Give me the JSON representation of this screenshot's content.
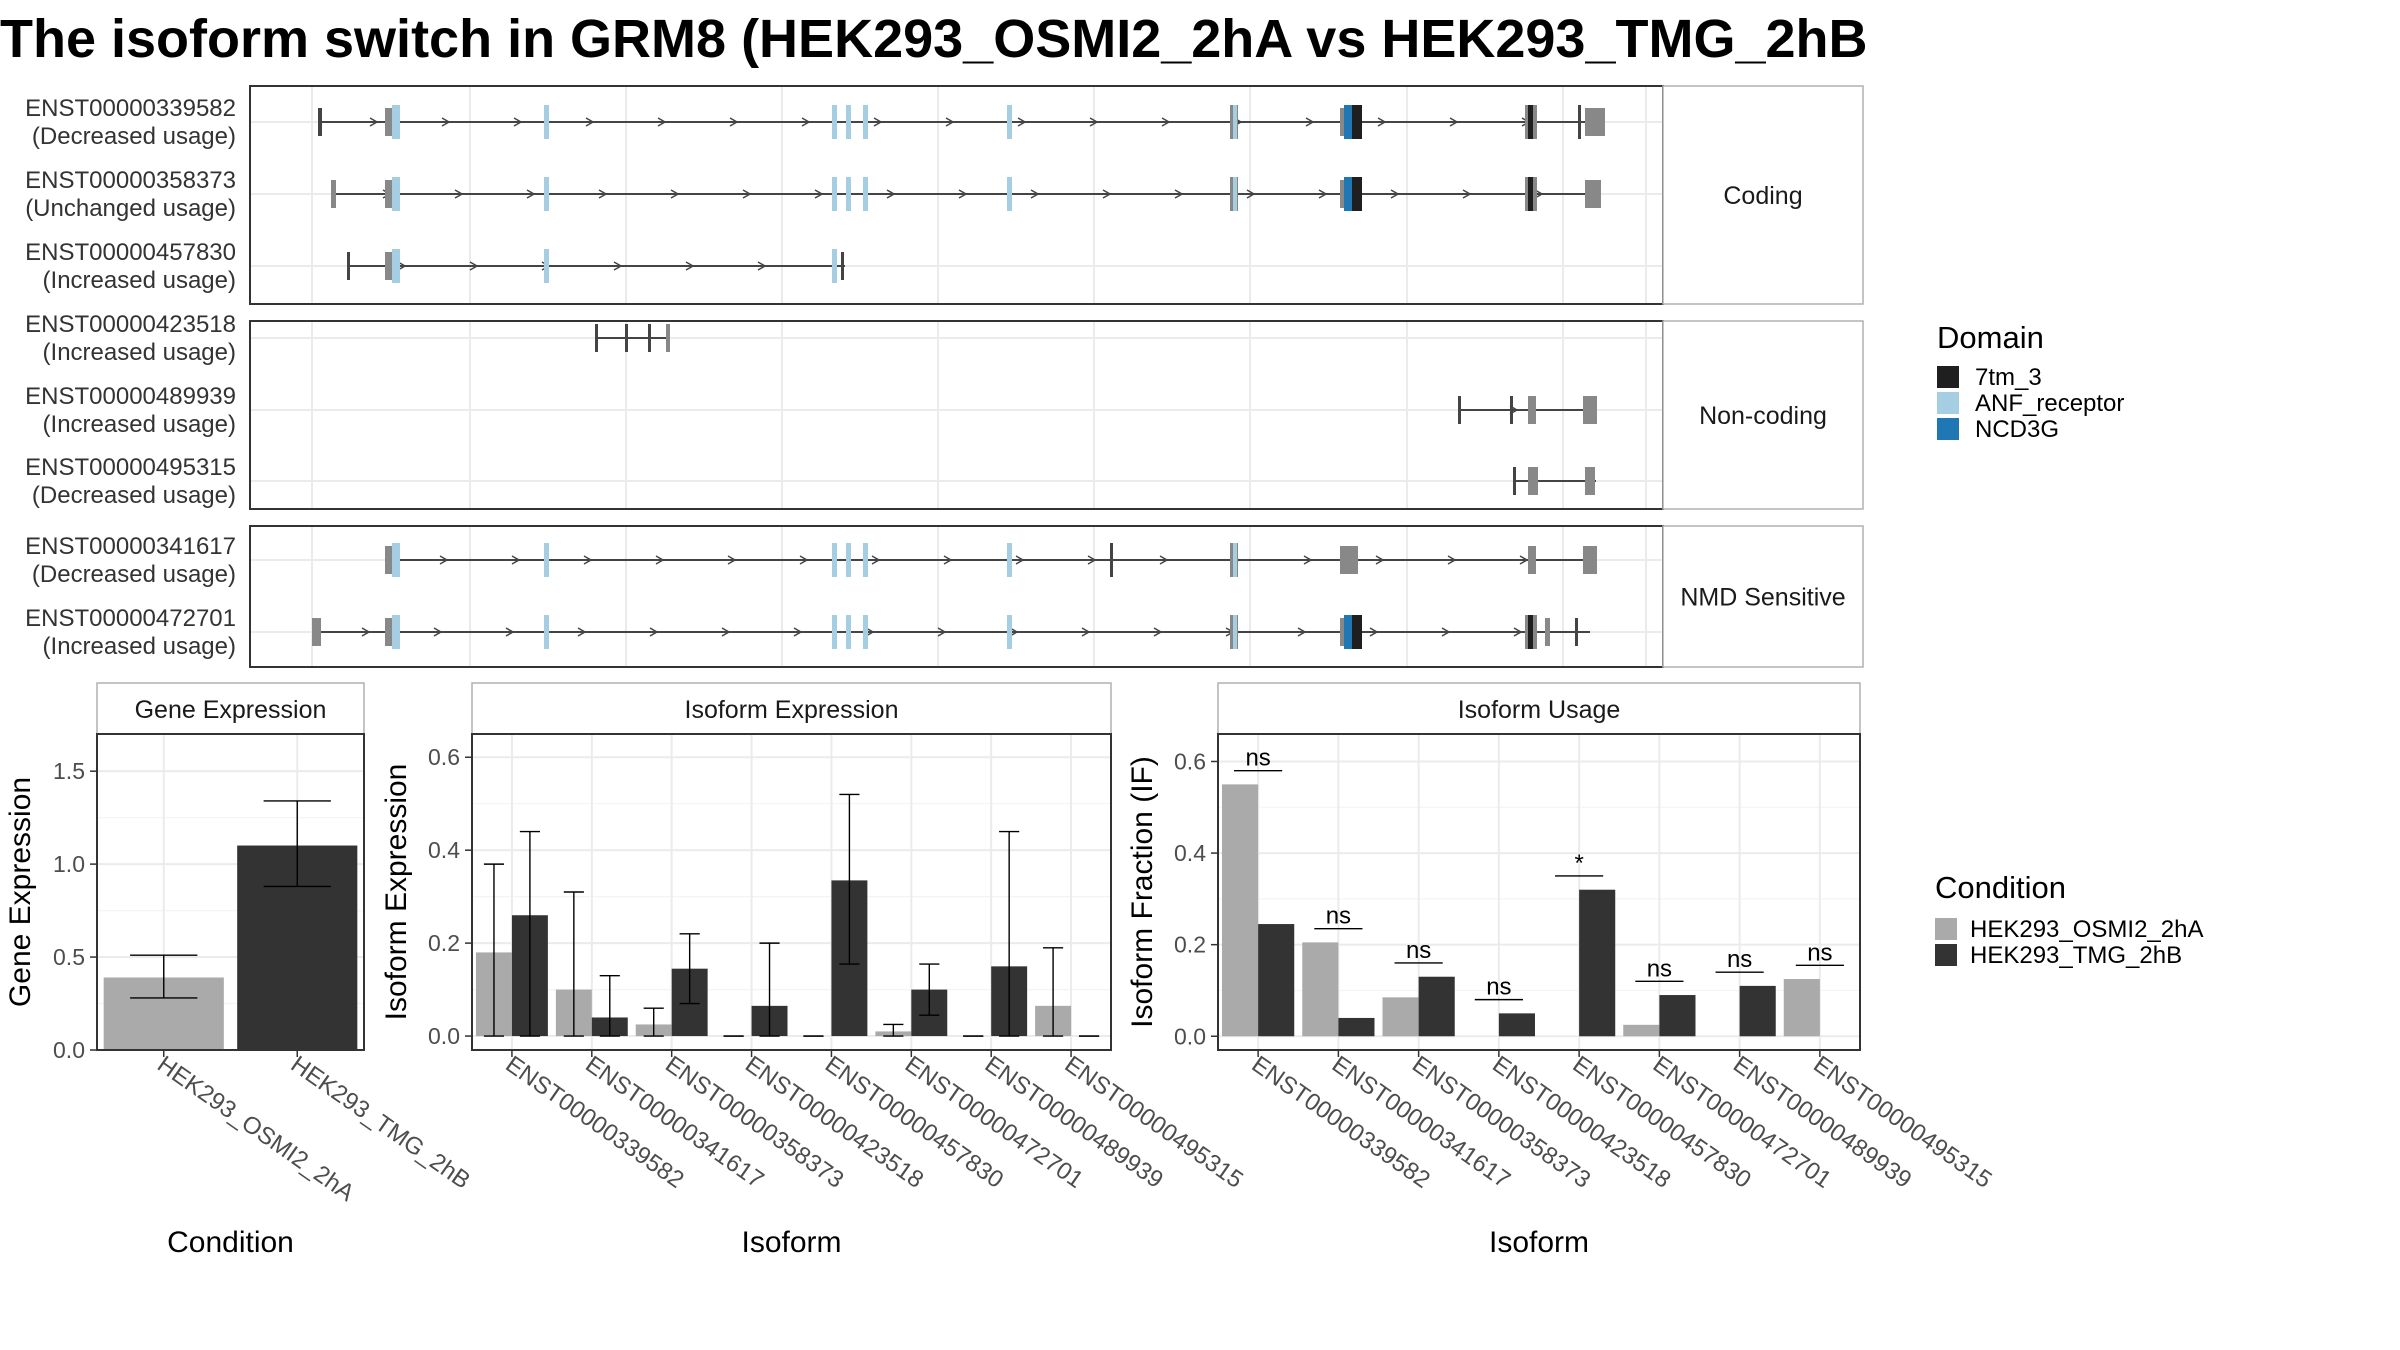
{
  "title": "The isoform switch in GRM8 (HEK293_OSMI2_2hA vs HEK293_TMG_2hB",
  "colors": {
    "7tm_3": "#1f1f1f",
    "ANF_receptor": "#a6cee3",
    "NCD3G": "#1f78b4",
    "HEK293_OSMI2_2hA": "#aaaaaa",
    "HEK293_TMG_2hB": "#333333",
    "intron": "#444444",
    "exon": "#888888"
  },
  "chart_data": [
    {
      "type": "gene-structure",
      "panels": [
        {
          "label": "Coding",
          "isoforms": [
            {
              "id": "ENST00000339582",
              "usage": "(Decreased usage)",
              "coding": true
            },
            {
              "id": "ENST00000358373",
              "usage": "(Unchanged usage)",
              "coding": true
            },
            {
              "id": "ENST00000457830",
              "usage": "(Increased usage)",
              "coding": true
            }
          ]
        },
        {
          "label": "Non-coding",
          "isoforms": [
            {
              "id": "ENST00000423518",
              "usage": "(Increased usage)",
              "coding": false
            },
            {
              "id": "ENST00000489939",
              "usage": "(Increased usage)",
              "coding": false
            },
            {
              "id": "ENST00000495315",
              "usage": "(Decreased usage)",
              "coding": false
            }
          ]
        },
        {
          "label": "NMD Sensitive",
          "isoforms": [
            {
              "id": "ENST00000341617",
              "usage": "(Decreased usage)",
              "coding": true
            },
            {
              "id": "ENST00000472701",
              "usage": "(Increased usage)",
              "coding": true
            }
          ]
        }
      ],
      "legend": {
        "title": "Domain",
        "entries": [
          "7tm_3",
          "ANF_receptor",
          "NCD3G"
        ]
      }
    },
    {
      "type": "bar",
      "title": "Gene Expression",
      "xlabel": "Condition",
      "ylabel": "Gene Expression",
      "ylim": [
        0,
        1.7
      ],
      "yticks": [
        0.0,
        0.5,
        1.0,
        1.5
      ],
      "categories": [
        "HEK293_OSMI2_2hA",
        "HEK293_TMG_2hB"
      ],
      "values": [
        0.39,
        1.1
      ],
      "error_low": [
        0.28,
        0.88
      ],
      "error_high": [
        0.51,
        1.34
      ]
    },
    {
      "type": "bar",
      "title": "Isoform Expression",
      "xlabel": "Isoform",
      "ylabel": "Isoform Expression",
      "ylim": [
        -0.03,
        0.65
      ],
      "yticks": [
        0.0,
        0.2,
        0.4,
        0.6
      ],
      "categories": [
        "ENST00000339582",
        "ENST00000341617",
        "ENST00000358373",
        "ENST00000423518",
        "ENST00000457830",
        "ENST00000472701",
        "ENST00000489939",
        "ENST00000495315"
      ],
      "series": [
        {
          "name": "HEK293_OSMI2_2hA",
          "values": [
            0.18,
            0.1,
            0.025,
            0.0,
            0.0,
            0.01,
            0.0,
            0.065
          ],
          "error_low": [
            0.0,
            0.0,
            0.0,
            0.0,
            0.0,
            0.0,
            0.0,
            0.0
          ],
          "error_high": [
            0.37,
            0.31,
            0.06,
            0.0,
            0.0,
            0.025,
            0.0,
            0.19
          ]
        },
        {
          "name": "HEK293_TMG_2hB",
          "values": [
            0.26,
            0.04,
            0.145,
            0.065,
            0.335,
            0.1,
            0.15,
            0.0
          ],
          "error_low": [
            0.0,
            0.0,
            0.07,
            0.0,
            0.155,
            0.045,
            0.0,
            0.0
          ],
          "error_high": [
            0.44,
            0.13,
            0.22,
            0.2,
            0.52,
            0.155,
            0.44,
            0.0
          ]
        }
      ]
    },
    {
      "type": "bar",
      "title": "Isoform Usage",
      "xlabel": "Isoform",
      "ylabel": "Isoform Fraction (IF)",
      "ylim": [
        -0.03,
        0.66
      ],
      "yticks": [
        0.0,
        0.2,
        0.4,
        0.6
      ],
      "categories": [
        "ENST00000339582",
        "ENST00000341617",
        "ENST00000358373",
        "ENST00000423518",
        "ENST00000457830",
        "ENST00000472701",
        "ENST00000489939",
        "ENST00000495315"
      ],
      "series": [
        {
          "name": "HEK293_OSMI2_2hA",
          "values": [
            0.55,
            0.205,
            0.085,
            0.0,
            0.0,
            0.025,
            0.0,
            0.125
          ]
        },
        {
          "name": "HEK293_TMG_2hB",
          "values": [
            0.245,
            0.04,
            0.13,
            0.05,
            0.32,
            0.09,
            0.11,
            0.0
          ]
        }
      ],
      "significance": [
        "ns",
        "ns",
        "ns",
        "ns",
        "*",
        "ns",
        "ns",
        "ns"
      ],
      "significance_y": [
        0.58,
        0.235,
        0.16,
        0.08,
        0.35,
        0.12,
        0.14,
        0.155
      ],
      "legend": {
        "title": "Condition",
        "entries": [
          "HEK293_OSMI2_2hA",
          "HEK293_TMG_2hB"
        ]
      }
    }
  ]
}
